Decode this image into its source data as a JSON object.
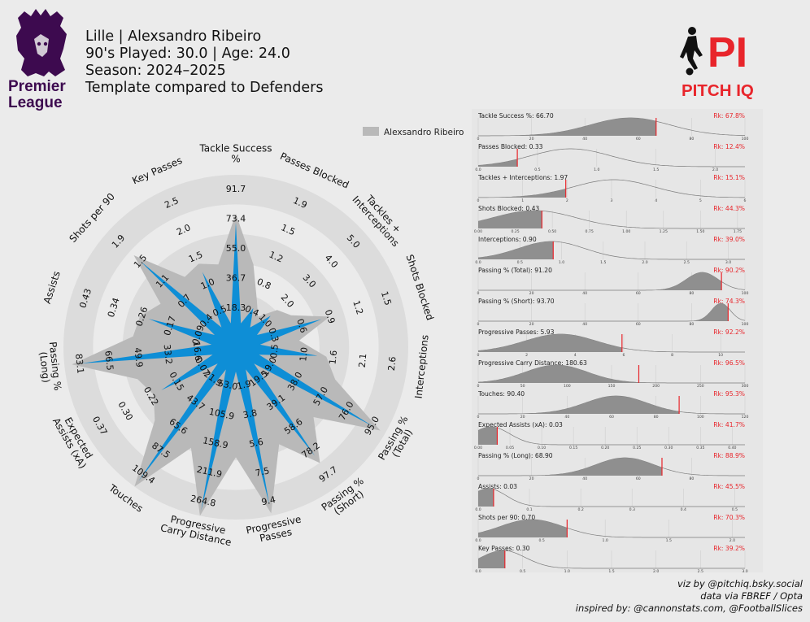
{
  "header": {
    "line1": "Lille | Alexsandro Ribeiro",
    "line2": "90's Played: 30.0 | Age: 24.0",
    "line3": "Season: 2024–2025",
    "line4": "Template compared to Defenders"
  },
  "logos": {
    "league_line1": "Premier",
    "league_line2": "League",
    "brand_mark": "PI",
    "brand_name": "PITCH IQ"
  },
  "colors": {
    "radar_fill": "#0e8ed6",
    "radar_bg": "#b9b9b9",
    "ring": "#dcdcdc",
    "marker": "#e8252b",
    "density": "#8f8f8f",
    "league": "#3d0a4f",
    "brand_red": "#e8252b"
  },
  "legend": {
    "label": "Alexsandro Ribeiro"
  },
  "footer": {
    "line1": "viz by @pitchiq.bsky.social",
    "line2": "data via FBREF / Opta",
    "line3": "inspired by: @cannonstats.com, @FootballSlices"
  },
  "chart_data": [
    {
      "type": "radar",
      "series": [
        {
          "name": "Alexsandro Ribeiro",
          "percentiles": [
            67.8,
            12.4,
            15.1,
            44.3,
            39.0,
            90.2,
            74.3,
            92.2,
            96.5,
            95.3,
            41.7,
            88.9,
            45.5,
            70.3,
            39.2
          ]
        }
      ],
      "axes": [
        {
          "label": [
            "Tackle Success",
            "%"
          ],
          "ticks": [
            "18.3",
            "36.7",
            "55.0",
            "73.4",
            "91.7"
          ]
        },
        {
          "label": [
            "Passes Blocked"
          ],
          "ticks": [
            "0.4",
            "0.8",
            "1.2",
            "1.5",
            "1.9"
          ]
        },
        {
          "label": [
            "Tackles +",
            "Interceptions"
          ],
          "ticks": [
            "1.0",
            "2.0",
            "3.0",
            "4.0",
            "5.0"
          ]
        },
        {
          "label": [
            "Shots Blocked"
          ],
          "ticks": [
            "0.3",
            "0.6",
            "0.9",
            "1.2",
            "1.5"
          ]
        },
        {
          "label": [
            "Interceptions"
          ],
          "ticks": [
            "0.5",
            "1.0",
            "1.6",
            "2.1",
            "2.6"
          ]
        },
        {
          "label": [
            "Passing %",
            "(Total)"
          ],
          "ticks": [
            "19.0",
            "38.0",
            "57.0",
            "76.0",
            "95.0"
          ]
        },
        {
          "label": [
            "Passing %",
            "(Short)"
          ],
          "ticks": [
            "19.5",
            "39.1",
            "58.6",
            "78.2",
            "97.7"
          ]
        },
        {
          "label": [
            "Progressive",
            "Passes"
          ],
          "ticks": [
            "1.9",
            "3.8",
            "5.6",
            "7.5",
            "9.4"
          ]
        },
        {
          "label": [
            "Progressive",
            "Carry Distance"
          ],
          "ticks": [
            "53.0",
            "105.9",
            "158.9",
            "211.9",
            "264.8"
          ]
        },
        {
          "label": [
            "Touches"
          ],
          "ticks": [
            "21.9",
            "43.7",
            "65.6",
            "87.5",
            "109.4"
          ]
        },
        {
          "label": [
            "Expected",
            "Assists (xA)"
          ],
          "ticks": [
            "0.07",
            "0.15",
            "0.22",
            "0.30",
            "0.37"
          ]
        },
        {
          "label": [
            "Passing %",
            "(Long)"
          ],
          "ticks": [
            "16.6",
            "33.2",
            "49.9",
            "66.5",
            "83.1"
          ]
        },
        {
          "label": [
            "Assists"
          ],
          "ticks": [
            "0.09",
            "0.17",
            "0.26",
            "0.34",
            "0.43"
          ]
        },
        {
          "label": [
            "Shots per 90"
          ],
          "ticks": [
            "0.4",
            "0.7",
            "1.1",
            "1.5",
            "1.9"
          ]
        },
        {
          "label": [
            "Key Passes"
          ],
          "ticks": [
            "0.5",
            "1.0",
            "1.5",
            "2.0",
            "2.5"
          ]
        }
      ]
    },
    {
      "type": "area",
      "panels": [
        {
          "title": "Tackle Success %: 66.70",
          "rank": "Rk: 67.8%",
          "value": 66.7,
          "xlim": [
            0,
            100
          ],
          "ticks": [
            "0",
            "20",
            "40",
            "60",
            "80",
            "100"
          ],
          "mu": 57,
          "sd": 15
        },
        {
          "title": "Passes Blocked: 0.33",
          "rank": "Rk: 12.4%",
          "value": 0.33,
          "xlim": [
            0,
            2.25
          ],
          "ticks": [
            "0.0",
            "0.5",
            "1.0",
            "1.5",
            "2.0"
          ],
          "mu": 0.78,
          "sd": 0.34
        },
        {
          "title": "Tackles + Interceptions: 1.97",
          "rank": "Rk: 15.1%",
          "value": 1.97,
          "xlim": [
            0,
            6
          ],
          "ticks": [
            "0",
            "1",
            "2",
            "3",
            "4",
            "5",
            "6"
          ],
          "mu": 3.05,
          "sd": 0.9
        },
        {
          "title": "Shots Blocked: 0.43",
          "rank": "Rk: 44.3%",
          "value": 0.43,
          "xlim": [
            0,
            1.8
          ],
          "ticks": [
            "0.00",
            "0.25",
            "0.50",
            "0.75",
            "1.00",
            "1.25",
            "1.50",
            "1.75"
          ],
          "mu": 0.38,
          "sd": 0.28
        },
        {
          "title": "Interceptions: 0.90",
          "rank": "Rk: 39.0%",
          "value": 0.9,
          "xlim": [
            0,
            3.2
          ],
          "ticks": [
            "0.0",
            "0.5",
            "1.0",
            "1.5",
            "2.0",
            "2.5",
            "3.0"
          ],
          "mu": 0.88,
          "sd": 0.4
        },
        {
          "title": "Passing % (Total): 91.20",
          "rank": "Rk: 90.2%",
          "value": 91.2,
          "xlim": [
            0,
            100
          ],
          "ticks": [
            "0",
            "20",
            "40",
            "60",
            "80",
            "100"
          ],
          "mu": 84,
          "sd": 6
        },
        {
          "title": "Passing % (Short): 93.70",
          "rank": "Rk: 74.3%",
          "value": 93.7,
          "xlim": [
            0,
            100
          ],
          "ticks": [
            "0",
            "20",
            "40",
            "60",
            "80",
            "100"
          ],
          "mu": 91,
          "sd": 3.5
        },
        {
          "title": "Progressive Passes: 5.93",
          "rank": "Rk: 92.2%",
          "value": 5.93,
          "xlim": [
            0,
            11
          ],
          "ticks": [
            "0",
            "2",
            "4",
            "6",
            "8",
            "10"
          ],
          "mu": 3.4,
          "sd": 1.5
        },
        {
          "title": "Progressive Carry Distance: 180.63",
          "rank": "Rk: 96.5%",
          "value": 180.63,
          "xlim": [
            0,
            300
          ],
          "ticks": [
            "0",
            "50",
            "100",
            "150",
            "200",
            "250",
            "300"
          ],
          "mu": 88,
          "sd": 35
        },
        {
          "title": "Touches: 90.40",
          "rank": "Rk: 95.3%",
          "value": 90.4,
          "xlim": [
            0,
            120
          ],
          "ticks": [
            "0",
            "20",
            "40",
            "60",
            "80",
            "100",
            "120"
          ],
          "mu": 62,
          "sd": 14
        },
        {
          "title": "Expected Assists (xA): 0.03",
          "rank": "Rk: 41.7%",
          "value": 0.03,
          "xlim": [
            0,
            0.42
          ],
          "ticks": [
            "0.00",
            "0.05",
            "0.10",
            "0.15",
            "0.20",
            "0.25",
            "0.30",
            "0.35",
            "0.40"
          ],
          "mu": 0.02,
          "sd": 0.03
        },
        {
          "title": "Passing % (Long): 68.90",
          "rank": "Rk: 88.9%",
          "value": 68.9,
          "xlim": [
            0,
            100
          ],
          "ticks": [
            "0",
            "20",
            "40",
            "60",
            "80"
          ],
          "mu": 55,
          "sd": 11
        },
        {
          "title": "Assists: 0.03",
          "rank": "Rk: 45.5%",
          "value": 0.03,
          "xlim": [
            0,
            0.52
          ],
          "ticks": [
            "0.0",
            "0.1",
            "0.2",
            "0.3",
            "0.4",
            "0.5"
          ],
          "mu": 0.02,
          "sd": 0.035
        },
        {
          "title": "Shots per 90: 0.70",
          "rank": "Rk: 70.3%",
          "value": 0.7,
          "xlim": [
            0,
            2.1
          ],
          "ticks": [
            "0.0",
            "0.5",
            "1.0",
            "1.5",
            "2.0"
          ],
          "mu": 0.42,
          "sd": 0.25
        },
        {
          "title": "Key Passes: 0.30",
          "rank": "Rk: 39.2%",
          "value": 0.3,
          "xlim": [
            0,
            3.0
          ],
          "ticks": [
            "0.0",
            "0.5",
            "1.0",
            "1.5",
            "2.0",
            "2.5",
            "3.0"
          ],
          "mu": 0.28,
          "sd": 0.25
        }
      ]
    }
  ]
}
